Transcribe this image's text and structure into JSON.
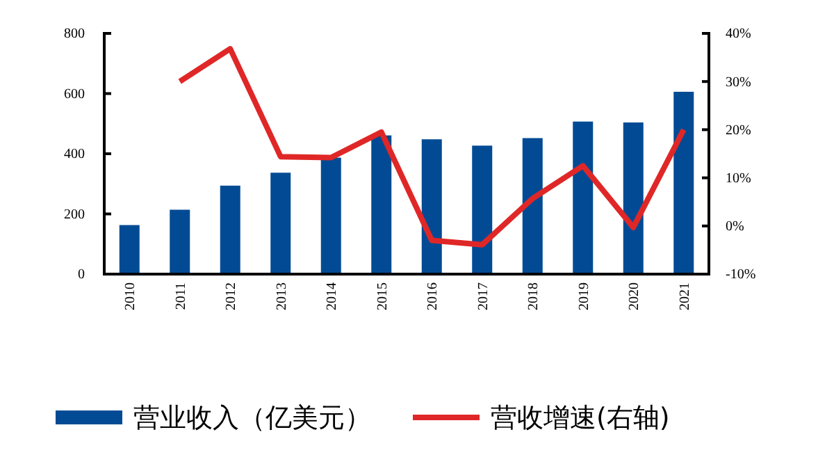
{
  "chart_data": {
    "type": "bar",
    "categories": [
      "2010",
      "2011",
      "2012",
      "2013",
      "2014",
      "2015",
      "2016",
      "2017",
      "2018",
      "2019",
      "2020",
      "2021"
    ],
    "series": [
      {
        "name": "营业收入（亿美元）",
        "color": "#024b94",
        "values": [
          163,
          214,
          294,
          337,
          387,
          461,
          448,
          427,
          452,
          507,
          504,
          606
        ]
      },
      {
        "name": "营收增速(右轴)",
        "type": "line",
        "axis": "y2",
        "color": "#e02727",
        "values": [
          null,
          30,
          36.8,
          14.4,
          14.2,
          19.5,
          -3.0,
          -3.9,
          5.7,
          12.5,
          -0.3,
          20
        ]
      }
    ],
    "ylim": [
      0,
      800
    ],
    "yticks": [
      0,
      200,
      400,
      600,
      800
    ],
    "y2lim": [
      -10,
      40
    ],
    "y2ticks": [
      {
        "value": -10,
        "label": "-10%"
      },
      {
        "value": 0,
        "label": "0%"
      },
      {
        "value": 10,
        "label": "10%"
      },
      {
        "value": 20,
        "label": "20%"
      },
      {
        "value": 30,
        "label": "30%"
      },
      {
        "value": 40,
        "label": "40%"
      }
    ],
    "grid": false,
    "legend": "bottom",
    "marker": "none",
    "line_style": "solid"
  }
}
